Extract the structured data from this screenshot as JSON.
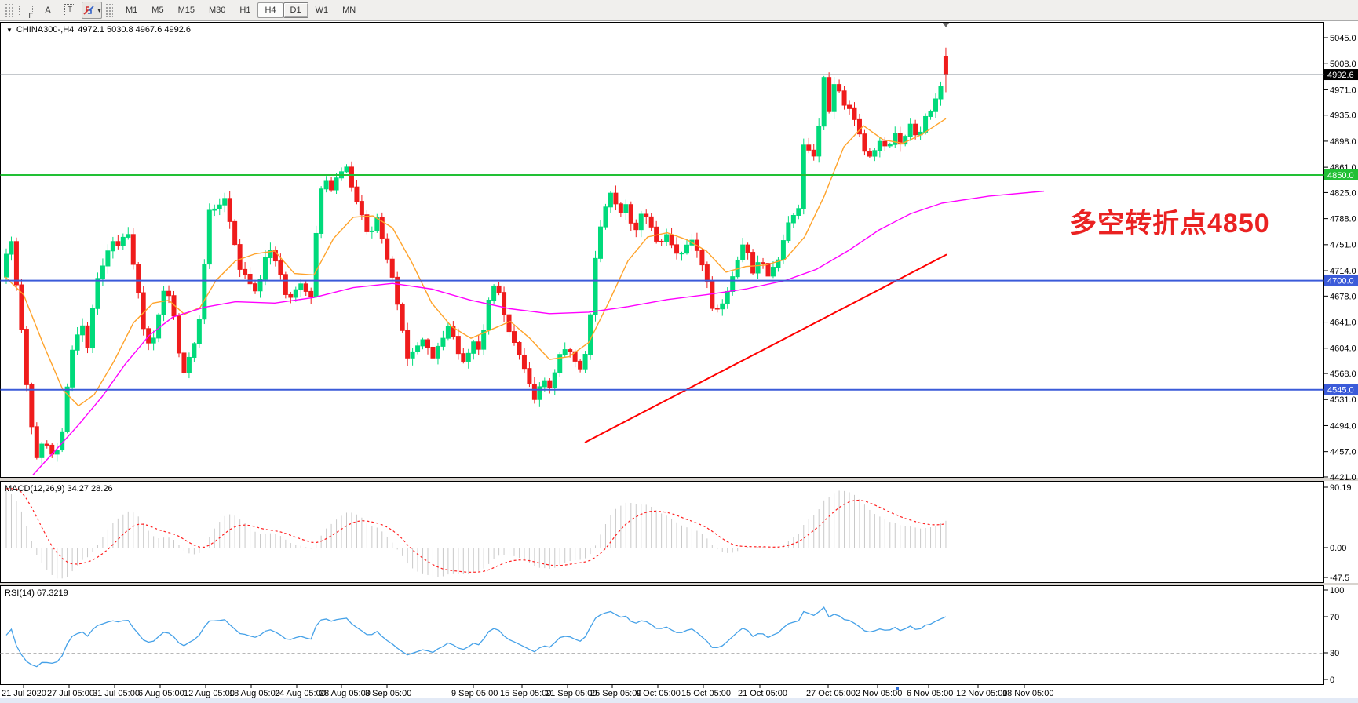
{
  "toolbar": {
    "tools": {
      "fibonacci_label": "F",
      "text_label": "A",
      "textbox_label": "T",
      "arrows_caret": "▾"
    },
    "timeframes": [
      "M1",
      "M5",
      "M15",
      "M30",
      "H1",
      "H4",
      "D1",
      "W1",
      "MN"
    ],
    "active_timeframe": "H4",
    "raised_timeframe": "D1"
  },
  "chart": {
    "title_symbol": "CHINA300-,H4",
    "title_ohlc": "4972.1 5030.8 4967.6 4992.6",
    "dropdown_triangle": "▼",
    "annotation": {
      "text": "多空转折点4850",
      "color": "#ea2222"
    },
    "current_price_label": "4992.6"
  },
  "macd": {
    "label": "MACD(12,26,9) 34.27 28.26",
    "axis": [
      [
        "90.19",
        621
      ],
      [
        "0.00",
        698
      ],
      [
        "-47.5",
        736
      ]
    ]
  },
  "rsi": {
    "label": "RSI(14) 67.3219",
    "axis": [
      [
        "100",
        752
      ],
      [
        "70",
        786
      ],
      [
        "30",
        832
      ],
      [
        "0",
        866
      ]
    ],
    "bands": [
      70,
      30
    ]
  },
  "time_axis": {
    "labels": [
      [
        "21 Jul 2020",
        2
      ],
      [
        "27 Jul 05:00",
        60
      ],
      [
        "31 Jul 05:00",
        118
      ],
      [
        "6 Aug 05:00",
        176
      ],
      [
        "12 Aug 05:00",
        234
      ],
      [
        "18 Aug 05:00",
        292
      ],
      [
        "24 Aug 05:00",
        350
      ],
      [
        "28 Aug 05:00",
        407
      ],
      [
        "3 Sep 05:00",
        465
      ],
      [
        "9 Sep 05:00",
        575
      ],
      [
        "15 Sep 05:00",
        637
      ],
      [
        "21 Sep 05:00",
        695
      ],
      [
        "25 Sep 05:00",
        752
      ],
      [
        "9 Oct 05:00",
        810
      ],
      [
        "15 Oct 05:00",
        868
      ],
      [
        "21 Oct 05:00",
        940
      ],
      [
        "27 Oct 05:00",
        1027
      ],
      [
        "2 Nov 05:00",
        1090
      ],
      [
        "6 Nov 05:00",
        1155
      ],
      [
        "12 Nov 05:00",
        1218
      ],
      [
        "18 Nov 05:00",
        1277
      ]
    ]
  },
  "chart_data": {
    "type": "candlestick",
    "symbol": "CHINA300-",
    "timeframe": "H4",
    "title": "CHINA300-,H4",
    "ohlc_display": {
      "open": "4972.1",
      "high": "5030.8",
      "low": "4967.6",
      "close": "4992.6"
    },
    "ylim": [
      4421.0,
      5045.0
    ],
    "y_ticks": [
      "5045.0",
      "5008.0",
      "4971.0",
      "4935.0",
      "4898.0",
      "4861.0",
      "4825.0",
      "4788.0",
      "4751.0",
      "4714.0",
      "4678.0",
      "4641.0",
      "4604.0",
      "4568.0",
      "4531.0",
      "4494.0",
      "4457.0",
      "4421.0"
    ],
    "colors": {
      "bull": "#00da7b",
      "bear": "#ef1c1c",
      "current_line": "#8a9099",
      "macd_bar": "#c9c9c9",
      "macd_signal": "#ff2020",
      "rsi_line": "#45a1e8",
      "level_green": "#22c035",
      "level_blue": "#3b5bd9",
      "trend": "#ff0000",
      "ma_fast": "#ffa32b",
      "ma_slow": "#ff00ff"
    },
    "candle_count": 186,
    "first_x": 8,
    "spacing": 6.47,
    "seed": 88,
    "first_open": 4705,
    "last_candle": {
      "open": 5018,
      "high": 5030.8,
      "low": 4967.6,
      "close": 4992.6
    },
    "current_price": 4992.6,
    "hlines": [
      {
        "price": 4850.0,
        "label": "4850.0",
        "color": "#22c035",
        "width": 2
      },
      {
        "price": 4700.0,
        "label": "4700.0",
        "color": "#3b5bd9",
        "width": 2
      },
      {
        "price": 4545.0,
        "label": "4545.0",
        "color": "#3b5bd9",
        "width": 2
      }
    ],
    "trend_line": {
      "from": [
        745,
        4470
      ],
      "to": [
        1206,
        4737
      ]
    },
    "close_path": [
      [
        6,
        4732
      ],
      [
        14,
        4762
      ],
      [
        22,
        4688
      ],
      [
        30,
        4598
      ],
      [
        38,
        4512
      ],
      [
        46,
        4448
      ],
      [
        56,
        4478
      ],
      [
        66,
        4452
      ],
      [
        76,
        4460
      ],
      [
        84,
        4535
      ],
      [
        94,
        4615
      ],
      [
        104,
        4640
      ],
      [
        112,
        4605
      ],
      [
        122,
        4695
      ],
      [
        132,
        4722
      ],
      [
        142,
        4762
      ],
      [
        152,
        4748
      ],
      [
        162,
        4775
      ],
      [
        172,
        4712
      ],
      [
        182,
        4638
      ],
      [
        192,
        4598
      ],
      [
        202,
        4655
      ],
      [
        212,
        4698
      ],
      [
        222,
        4645
      ],
      [
        232,
        4558
      ],
      [
        242,
        4590
      ],
      [
        252,
        4628
      ],
      [
        260,
        4720
      ],
      [
        268,
        4812
      ],
      [
        276,
        4798
      ],
      [
        286,
        4815
      ],
      [
        296,
        4772
      ],
      [
        306,
        4718
      ],
      [
        316,
        4700
      ],
      [
        326,
        4682
      ],
      [
        336,
        4725
      ],
      [
        346,
        4748
      ],
      [
        356,
        4712
      ],
      [
        366,
        4668
      ],
      [
        376,
        4690
      ],
      [
        386,
        4692
      ],
      [
        396,
        4678
      ],
      [
        404,
        4790
      ],
      [
        412,
        4858
      ],
      [
        420,
        4828
      ],
      [
        430,
        4852
      ],
      [
        440,
        4862
      ],
      [
        450,
        4828
      ],
      [
        460,
        4800
      ],
      [
        470,
        4762
      ],
      [
        480,
        4788
      ],
      [
        490,
        4742
      ],
      [
        500,
        4700
      ],
      [
        510,
        4645
      ],
      [
        520,
        4582
      ],
      [
        530,
        4605
      ],
      [
        540,
        4618
      ],
      [
        550,
        4588
      ],
      [
        560,
        4612
      ],
      [
        572,
        4638
      ],
      [
        582,
        4605
      ],
      [
        592,
        4578
      ],
      [
        602,
        4612
      ],
      [
        612,
        4598
      ],
      [
        622,
        4672
      ],
      [
        632,
        4695
      ],
      [
        642,
        4655
      ],
      [
        652,
        4618
      ],
      [
        662,
        4595
      ],
      [
        672,
        4558
      ],
      [
        682,
        4532
      ],
      [
        692,
        4562
      ],
      [
        702,
        4545
      ],
      [
        712,
        4592
      ],
      [
        722,
        4605
      ],
      [
        732,
        4588
      ],
      [
        742,
        4568
      ],
      [
        752,
        4648
      ],
      [
        760,
        4745
      ],
      [
        768,
        4792
      ],
      [
        778,
        4822
      ],
      [
        788,
        4795
      ],
      [
        798,
        4808
      ],
      [
        808,
        4768
      ],
      [
        818,
        4800
      ],
      [
        828,
        4778
      ],
      [
        838,
        4755
      ],
      [
        848,
        4765
      ],
      [
        858,
        4745
      ],
      [
        868,
        4738
      ],
      [
        878,
        4762
      ],
      [
        888,
        4742
      ],
      [
        898,
        4715
      ],
      [
        908,
        4652
      ],
      [
        918,
        4662
      ],
      [
        928,
        4692
      ],
      [
        938,
        4718
      ],
      [
        948,
        4762
      ],
      [
        958,
        4705
      ],
      [
        968,
        4732
      ],
      [
        978,
        4708
      ],
      [
        988,
        4718
      ],
      [
        998,
        4755
      ],
      [
        1008,
        4792
      ],
      [
        1016,
        4782
      ],
      [
        1024,
        4898
      ],
      [
        1032,
        4882
      ],
      [
        1040,
        4868
      ],
      [
        1048,
        5005
      ],
      [
        1056,
        4942
      ],
      [
        1064,
        4988
      ],
      [
        1072,
        4958
      ],
      [
        1082,
        4945
      ],
      [
        1092,
        4922
      ],
      [
        1102,
        4885
      ],
      [
        1112,
        4872
      ],
      [
        1120,
        4902
      ],
      [
        1130,
        4888
      ],
      [
        1140,
        4905
      ],
      [
        1150,
        4895
      ],
      [
        1160,
        4922
      ],
      [
        1170,
        4902
      ],
      [
        1180,
        4932
      ],
      [
        1190,
        4948
      ],
      [
        1198,
        4972
      ],
      [
        1202,
        5018
      ],
      [
        1205,
        4992.6
      ]
    ],
    "ma_fast_points": [
      [
        6,
        4706
      ],
      [
        30,
        4680
      ],
      [
        55,
        4610
      ],
      [
        80,
        4545
      ],
      [
        100,
        4522
      ],
      [
        120,
        4538
      ],
      [
        145,
        4585
      ],
      [
        170,
        4640
      ],
      [
        195,
        4668
      ],
      [
        215,
        4672
      ],
      [
        235,
        4652
      ],
      [
        255,
        4662
      ],
      [
        275,
        4700
      ],
      [
        300,
        4728
      ],
      [
        325,
        4738
      ],
      [
        350,
        4742
      ],
      [
        375,
        4710
      ],
      [
        400,
        4708
      ],
      [
        425,
        4760
      ],
      [
        450,
        4790
      ],
      [
        475,
        4792
      ],
      [
        500,
        4775
      ],
      [
        525,
        4725
      ],
      [
        550,
        4668
      ],
      [
        575,
        4635
      ],
      [
        600,
        4618
      ],
      [
        625,
        4630
      ],
      [
        650,
        4642
      ],
      [
        675,
        4618
      ],
      [
        700,
        4588
      ],
      [
        725,
        4592
      ],
      [
        750,
        4612
      ],
      [
        775,
        4668
      ],
      [
        800,
        4728
      ],
      [
        825,
        4762
      ],
      [
        850,
        4768
      ],
      [
        875,
        4758
      ],
      [
        900,
        4742
      ],
      [
        925,
        4712
      ],
      [
        950,
        4720
      ],
      [
        975,
        4722
      ],
      [
        1000,
        4730
      ],
      [
        1025,
        4762
      ],
      [
        1050,
        4820
      ],
      [
        1075,
        4890
      ],
      [
        1100,
        4920
      ],
      [
        1125,
        4900
      ],
      [
        1150,
        4895
      ],
      [
        1175,
        4908
      ],
      [
        1205,
        4930
      ]
    ],
    "ma_slow_points": [
      [
        42,
        4424
      ],
      [
        70,
        4458
      ],
      [
        100,
        4495
      ],
      [
        130,
        4535
      ],
      [
        160,
        4582
      ],
      [
        190,
        4622
      ],
      [
        220,
        4648
      ],
      [
        260,
        4662
      ],
      [
        300,
        4670
      ],
      [
        350,
        4668
      ],
      [
        400,
        4676
      ],
      [
        450,
        4690
      ],
      [
        500,
        4696
      ],
      [
        550,
        4688
      ],
      [
        600,
        4672
      ],
      [
        650,
        4660
      ],
      [
        700,
        4653
      ],
      [
        750,
        4655
      ],
      [
        800,
        4663
      ],
      [
        850,
        4673
      ],
      [
        900,
        4680
      ],
      [
        950,
        4688
      ],
      [
        1000,
        4700
      ],
      [
        1040,
        4716
      ],
      [
        1080,
        4742
      ],
      [
        1120,
        4772
      ],
      [
        1160,
        4795
      ],
      [
        1200,
        4810
      ],
      [
        1260,
        4820
      ],
      [
        1330,
        4827
      ]
    ]
  }
}
